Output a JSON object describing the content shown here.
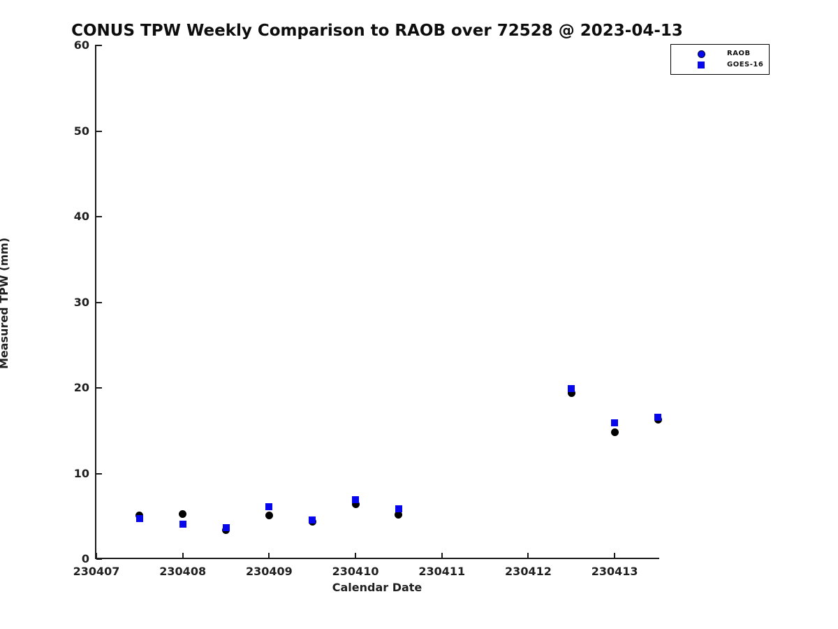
{
  "title": "CONUS TPW Weekly Comparison to RAOB over 72528 @ 2023-04-13",
  "colors": {
    "raob_plot_marker": "#000000",
    "goes16_plot_marker": "#0707ee",
    "legend_raob_marker": "#0707ee",
    "legend_goes16_marker": "#0707ee",
    "axis": "#1a1a1a"
  },
  "legend": {
    "items": [
      {
        "label": "RAOB",
        "marker": "circle-icon"
      },
      {
        "label": "GOES-16",
        "marker": "square-icon"
      }
    ]
  },
  "chart_data": {
    "type": "scatter",
    "title": "CONUS TPW Weekly Comparison to RAOB over 72528 @ 2023-04-13",
    "xlabel": "Calendar Date",
    "ylabel": "Measured TPW (mm)",
    "xlim": [
      230407,
      230413.5
    ],
    "ylim": [
      0,
      60
    ],
    "grid": false,
    "legend_position": "top-right-outside",
    "x_ticks": [
      230407,
      230408,
      230409,
      230410,
      230411,
      230412,
      230413
    ],
    "x_tick_labels": [
      "230407",
      "230408",
      "230409",
      "230410",
      "230411",
      "230412",
      "230413"
    ],
    "y_ticks": [
      0,
      10,
      20,
      30,
      40,
      50,
      60
    ],
    "y_tick_labels": [
      "0",
      "10",
      "20",
      "30",
      "40",
      "50",
      "60"
    ],
    "series": [
      {
        "name": "RAOB",
        "marker": "circle",
        "color": "#000000",
        "x": [
          230407.5,
          230408.0,
          230408.5,
          230409.0,
          230409.5,
          230410.0,
          230410.5,
          230412.5,
          230413.0,
          230413.5
        ],
        "y": [
          5.1,
          5.3,
          3.4,
          5.1,
          4.4,
          6.4,
          5.2,
          19.4,
          14.8,
          16.3
        ]
      },
      {
        "name": "GOES-16",
        "marker": "square",
        "color": "#0707ee",
        "x": [
          230407.5,
          230408.0,
          230408.5,
          230409.0,
          230409.5,
          230410.0,
          230410.5,
          230412.5,
          230413.0,
          230413.5
        ],
        "y": [
          4.7,
          4.1,
          3.7,
          6.1,
          4.6,
          6.9,
          5.9,
          19.9,
          15.9,
          16.6
        ]
      }
    ]
  }
}
